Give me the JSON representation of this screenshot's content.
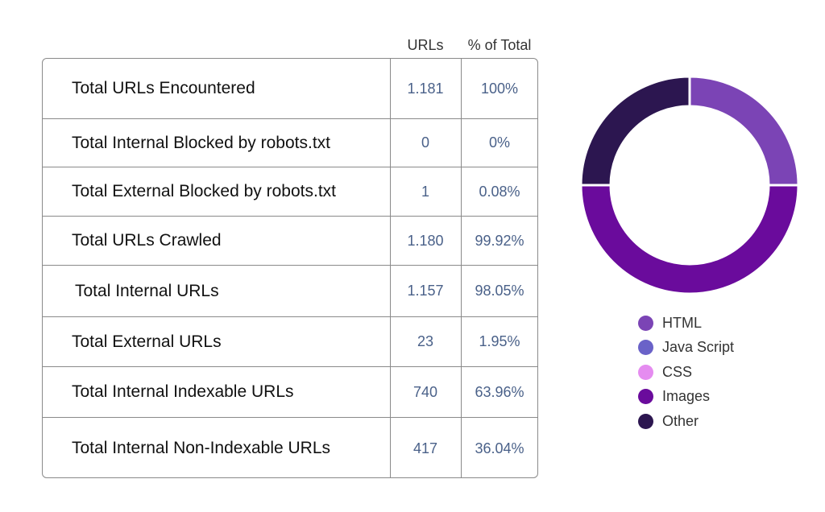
{
  "table": {
    "headers": {
      "urls": "URLs",
      "pct": "% of Total"
    },
    "rows": [
      {
        "label": "Total URLs Encountered",
        "urls": "1.181",
        "pct": "100%"
      },
      {
        "label": "Total Internal Blocked by robots.txt",
        "urls": "0",
        "pct": "0%"
      },
      {
        "label": "Total External Blocked by robots.txt",
        "urls": "1",
        "pct": "0.08%"
      },
      {
        "label": "Total URLs Crawled",
        "urls": "1.180",
        "pct": "99.92%"
      },
      {
        "label": "Total Internal URLs",
        "urls": "1.157",
        "pct": "98.05%"
      },
      {
        "label": "Total External URLs",
        "urls": "23",
        "pct": "1.95%"
      },
      {
        "label": "Total Internal Indexable URLs",
        "urls": "740",
        "pct": "63.96%"
      },
      {
        "label": "Total Internal Non-Indexable URLs",
        "urls": "417",
        "pct": "36.04%"
      }
    ]
  },
  "chart_data": {
    "type": "pie",
    "style": "donut",
    "legend_position": "bottom",
    "labels": [
      "HTML",
      "Java Script",
      "CSS",
      "Images",
      "Other"
    ],
    "values": [
      25,
      0,
      0,
      50,
      25
    ],
    "colors": [
      "#7b44b5",
      "#6a62c8",
      "#e58cf0",
      "#6a0b9c",
      "#2c1650"
    ]
  }
}
